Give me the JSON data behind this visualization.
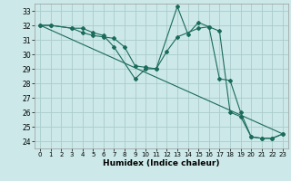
{
  "xlabel": "Humidex (Indice chaleur)",
  "bg_color": "#cce8e8",
  "grid_color": "#aacccc",
  "line_color": "#1a6b5a",
  "xlim": [
    -0.5,
    23.5
  ],
  "ylim": [
    23.5,
    33.5
  ],
  "yticks": [
    24,
    25,
    26,
    27,
    28,
    29,
    30,
    31,
    32,
    33
  ],
  "xticks": [
    0,
    1,
    2,
    3,
    4,
    5,
    6,
    7,
    8,
    9,
    10,
    11,
    12,
    13,
    14,
    15,
    16,
    17,
    18,
    19,
    20,
    21,
    22,
    23
  ],
  "line1_x": [
    0,
    1,
    3,
    4,
    5,
    6,
    7,
    9,
    10,
    11,
    13,
    14,
    15,
    16,
    17,
    18,
    19,
    20,
    21,
    22,
    23
  ],
  "line1_y": [
    32,
    32,
    31.8,
    31.8,
    31.5,
    31.3,
    30.5,
    28.3,
    29.0,
    29.0,
    33.3,
    31.4,
    32.2,
    31.9,
    28.3,
    28.2,
    26.0,
    24.3,
    24.2,
    24.2,
    24.5
  ],
  "line2_x": [
    0,
    1,
    3,
    4,
    5,
    6,
    7,
    8,
    9,
    10,
    11,
    12,
    13,
    15,
    16,
    17,
    18,
    19,
    20,
    21,
    22,
    23
  ],
  "line2_y": [
    32,
    32,
    31.8,
    31.5,
    31.3,
    31.2,
    31.1,
    30.5,
    29.2,
    29.1,
    29.0,
    30.2,
    31.2,
    31.8,
    31.9,
    31.6,
    26.0,
    25.7,
    24.3,
    24.2,
    24.2,
    24.5
  ],
  "line3_x": [
    0,
    23
  ],
  "line3_y": [
    32,
    24.5
  ]
}
